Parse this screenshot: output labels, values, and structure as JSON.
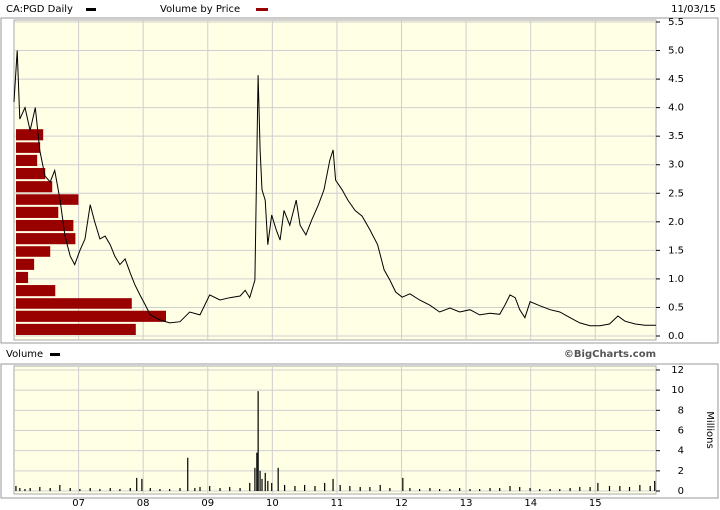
{
  "chart_data": [
    {
      "type": "line",
      "date": "11/03/15",
      "xlim": [
        2006,
        2015.94
      ],
      "ylim": [
        0,
        5.5
      ],
      "yticks": [
        {
          "value": 0,
          "label": "0.0"
        },
        0.5,
        {
          "value": 1,
          "label": "1.0"
        },
        1.5,
        {
          "value": 2,
          "label": "2.0"
        },
        2.5,
        {
          "value": 3,
          "label": "3.0"
        },
        3.5,
        {
          "value": 4,
          "label": "4.0"
        },
        4.5,
        {
          "value": 5,
          "label": "5.0"
        },
        5.5
      ],
      "grid": true,
      "x": [
        2006.0,
        2006.05,
        2006.09,
        2006.17,
        2006.25,
        2006.33,
        2006.4,
        2006.48,
        2006.56,
        2006.63,
        2006.71,
        2006.79,
        2006.87,
        2006.94,
        2007.02,
        2007.1,
        2007.18,
        2007.25,
        2007.33,
        2007.41,
        2007.49,
        2007.56,
        2007.64,
        2007.72,
        2007.8,
        2007.87,
        2007.95,
        2008.03,
        2008.11,
        2008.26,
        2008.41,
        2008.57,
        2008.72,
        2008.88,
        2009.03,
        2009.19,
        2009.34,
        2009.5,
        2009.58,
        2009.65,
        2009.73,
        2009.78,
        2009.81,
        2009.84,
        2009.89,
        2009.93,
        2009.99,
        2010.06,
        2010.12,
        2010.18,
        2010.27,
        2010.37,
        2010.43,
        2010.52,
        2010.61,
        2010.71,
        2010.8,
        2010.89,
        2010.94,
        2010.98,
        2011.08,
        2011.17,
        2011.28,
        2011.39,
        2011.51,
        2011.63,
        2011.73,
        2011.82,
        2011.91,
        2012.01,
        2012.13,
        2012.28,
        2012.44,
        2012.59,
        2012.75,
        2012.9,
        2013.06,
        2013.21,
        2013.37,
        2013.52,
        2013.6,
        2013.68,
        2013.76,
        2013.83,
        2013.91,
        2013.99,
        2014.14,
        2014.3,
        2014.45,
        2014.61,
        2014.76,
        2014.92,
        2015.07,
        2015.22,
        2015.35,
        2015.46,
        2015.62,
        2015.77,
        2015.94
      ],
      "series": [
        {
          "name": "CA:PGD Daily",
          "color": "#000000",
          "values": [
            4.1,
            5.0,
            3.8,
            4.0,
            3.6,
            4.0,
            3.25,
            2.8,
            2.7,
            2.9,
            2.4,
            1.75,
            1.4,
            1.25,
            1.5,
            1.7,
            2.3,
            2.0,
            1.7,
            1.75,
            1.6,
            1.4,
            1.25,
            1.35,
            1.1,
            0.9,
            0.72,
            0.55,
            0.37,
            0.28,
            0.23,
            0.25,
            0.42,
            0.37,
            0.72,
            0.63,
            0.67,
            0.7,
            0.8,
            0.67,
            0.98,
            4.57,
            3.26,
            2.56,
            2.38,
            1.6,
            2.12,
            1.86,
            1.68,
            2.2,
            1.94,
            2.38,
            1.94,
            1.77,
            2.03,
            2.29,
            2.56,
            3.08,
            3.26,
            2.73,
            2.56,
            2.38,
            2.2,
            2.1,
            1.86,
            1.6,
            1.16,
            0.98,
            0.77,
            0.68,
            0.74,
            0.63,
            0.54,
            0.42,
            0.49,
            0.42,
            0.46,
            0.37,
            0.4,
            0.38,
            0.54,
            0.72,
            0.67,
            0.46,
            0.32,
            0.6,
            0.53,
            0.46,
            0.42,
            0.32,
            0.23,
            0.18,
            0.18,
            0.21,
            0.35,
            0.26,
            0.21,
            0.19,
            0.19
          ]
        }
      ],
      "volume_by_price": {
        "name": "Volume by Price",
        "color": "#990000",
        "bins": [
          0,
          0.23,
          0.46,
          0.68,
          0.91,
          1.14,
          1.37,
          1.59,
          1.82,
          2.05,
          2.28,
          2.5,
          2.73,
          2.96,
          3.19,
          3.41,
          3.64
        ],
        "values": [
          119,
          149,
          115,
          39,
          12,
          18,
          34,
          59,
          57,
          42,
          62,
          36,
          29,
          21,
          24,
          27
        ]
      }
    },
    {
      "type": "bar",
      "annotation": "©BigCharts.com",
      "ylabel": "Millions",
      "xlim": [
        2006,
        2015.94
      ],
      "ylim": [
        0,
        12
      ],
      "yticks": [
        0,
        2,
        4,
        6,
        8,
        10,
        12
      ],
      "xticks": [
        {
          "value": 2007,
          "label": "07"
        },
        {
          "value": 2008,
          "label": "08"
        },
        {
          "value": 2009,
          "label": "09"
        },
        {
          "value": 2010,
          "label": "10"
        },
        {
          "value": 2011,
          "label": "11"
        },
        {
          "value": 2012,
          "label": "12"
        },
        {
          "value": 2013,
          "label": "13"
        },
        {
          "value": 2014,
          "label": "14"
        },
        {
          "value": 2015,
          "label": "15"
        }
      ],
      "grid": true,
      "x": [
        2006.03,
        2006.09,
        2006.17,
        2006.25,
        2006.4,
        2006.56,
        2006.71,
        2006.87,
        2007.02,
        2007.18,
        2007.33,
        2007.49,
        2007.64,
        2007.8,
        2007.9,
        2007.98,
        2008.11,
        2008.26,
        2008.41,
        2008.57,
        2008.69,
        2008.8,
        2008.88,
        2009.03,
        2009.19,
        2009.34,
        2009.5,
        2009.65,
        2009.73,
        2009.76,
        2009.78,
        2009.81,
        2009.84,
        2009.89,
        2009.93,
        2009.99,
        2010.09,
        2010.19,
        2010.35,
        2010.5,
        2010.66,
        2010.81,
        2010.94,
        2011.05,
        2011.2,
        2011.36,
        2011.51,
        2011.67,
        2011.82,
        2012.02,
        2012.13,
        2012.28,
        2012.44,
        2012.59,
        2012.75,
        2012.9,
        2013.06,
        2013.21,
        2013.37,
        2013.52,
        2013.68,
        2013.83,
        2013.99,
        2014.14,
        2014.3,
        2014.45,
        2014.61,
        2014.76,
        2014.92,
        2015.04,
        2015.22,
        2015.38,
        2015.53,
        2015.69,
        2015.85,
        2015.92
      ],
      "series": [
        {
          "name": "Volume",
          "color": "#000000",
          "values": [
            0.5,
            0.3,
            0.2,
            0.3,
            0.4,
            0.3,
            0.6,
            0.3,
            0.2,
            0.3,
            0.2,
            0.3,
            0.2,
            0.3,
            1.3,
            1.2,
            0.3,
            0.2,
            0.2,
            0.3,
            3.3,
            0.3,
            0.4,
            0.5,
            0.3,
            0.4,
            0.3,
            0.8,
            2.3,
            3.8,
            9.9,
            2.0,
            1.2,
            1.8,
            1.0,
            0.8,
            2.3,
            0.6,
            0.5,
            0.6,
            0.5,
            0.8,
            1.2,
            0.6,
            0.5,
            0.4,
            0.4,
            0.6,
            0.3,
            1.3,
            0.3,
            0.2,
            0.3,
            0.2,
            0.2,
            0.3,
            0.2,
            0.2,
            0.3,
            0.3,
            0.5,
            0.4,
            0.3,
            0.2,
            0.2,
            0.2,
            0.3,
            0.4,
            0.4,
            0.8,
            0.5,
            0.5,
            0.4,
            0.6,
            0.5,
            1.0
          ]
        }
      ]
    }
  ]
}
